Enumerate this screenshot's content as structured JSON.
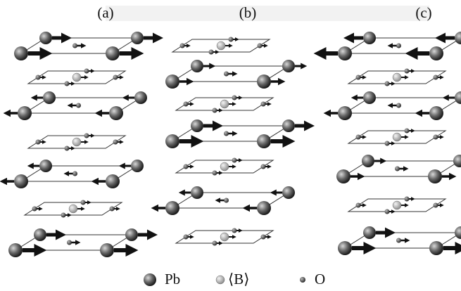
{
  "panels": [
    {
      "label": "(a)"
    },
    {
      "label": "(b)"
    },
    {
      "label": "(c)"
    }
  ],
  "legend": [
    {
      "label": "Pb"
    },
    {
      "label": "⟨B⟩"
    },
    {
      "label": "O"
    }
  ]
}
